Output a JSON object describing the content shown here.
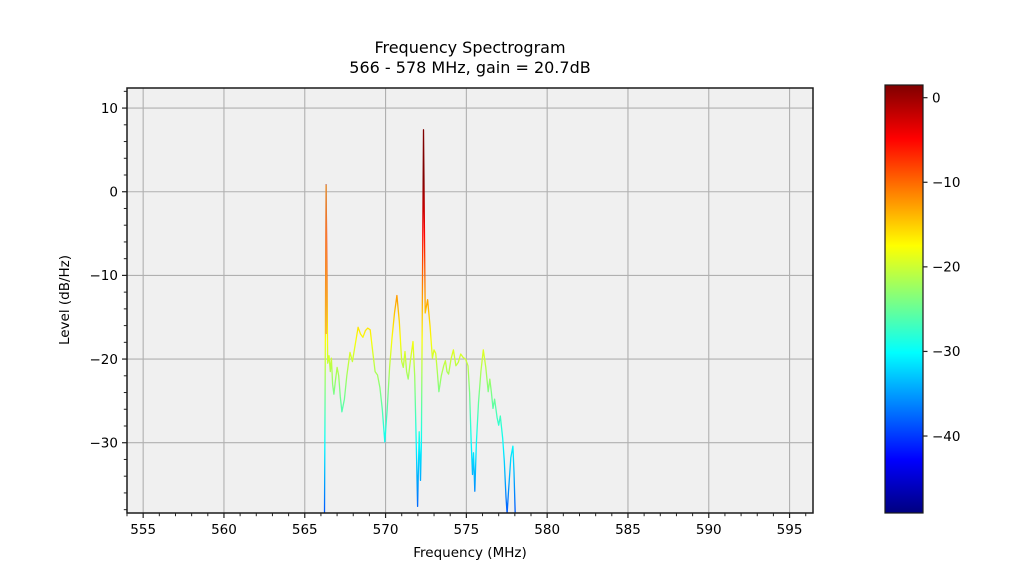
{
  "figure": {
    "background": "#ffffff"
  },
  "chart_data": {
    "type": "line",
    "title_lines": [
      "Frequency Spectrogram",
      "566 - 578 MHz, gain = 20.7dB"
    ],
    "xlabel": "Frequency (MHz)",
    "ylabel": "Level (dB/Hz)",
    "xlim": [
      554.0,
      596.45
    ],
    "ylim": [
      -38.4,
      12.4
    ],
    "grid": true,
    "plot_bg": "#f0f0f0",
    "grid_color": "#b0b0b0",
    "spine_color": "#1a1a1a",
    "tick_color": "#222222",
    "x_major_ticks": [
      {
        "v": 555,
        "label": "555"
      },
      {
        "v": 560,
        "label": "560"
      },
      {
        "v": 565,
        "label": "565"
      },
      {
        "v": 570,
        "label": "570"
      },
      {
        "v": 575,
        "label": "575"
      },
      {
        "v": 580,
        "label": "580"
      },
      {
        "v": 585,
        "label": "585"
      },
      {
        "v": 590,
        "label": "590"
      },
      {
        "v": 595,
        "label": "595"
      }
    ],
    "x_minor_step": 1,
    "y_major_ticks": [
      {
        "v": 10,
        "label": "10"
      },
      {
        "v": 0,
        "label": "0"
      },
      {
        "v": -10,
        "label": "−10"
      },
      {
        "v": -20,
        "label": "−20"
      },
      {
        "v": -30,
        "label": "−30"
      }
    ],
    "y_minor_step": 2,
    "colormap": "jet",
    "color_vmin": -49.1,
    "color_vmax": 1.5,
    "colorbar_ticks": [
      {
        "v": 0,
        "label": "0"
      },
      {
        "v": -10,
        "label": "−10"
      },
      {
        "v": -20,
        "label": "−20"
      },
      {
        "v": -30,
        "label": "−30"
      },
      {
        "v": -40,
        "label": "−40"
      }
    ],
    "series": [
      {
        "name": "spectrum",
        "points": [
          [
            566.22,
            -38.5
          ],
          [
            566.32,
            0.8
          ],
          [
            566.42,
            -20.5
          ],
          [
            566.5,
            -19.6
          ],
          [
            566.58,
            -21.5
          ],
          [
            566.65,
            -19.9
          ],
          [
            566.72,
            -23.0
          ],
          [
            566.8,
            -24.2
          ],
          [
            566.9,
            -22.5
          ],
          [
            567.0,
            -21.0
          ],
          [
            567.1,
            -22.0
          ],
          [
            567.2,
            -24.5
          ],
          [
            567.3,
            -26.3
          ],
          [
            567.45,
            -24.8
          ],
          [
            567.6,
            -22.0
          ],
          [
            567.8,
            -19.2
          ],
          [
            567.95,
            -20.3
          ],
          [
            568.1,
            -18.5
          ],
          [
            568.3,
            -16.2
          ],
          [
            568.45,
            -17.0
          ],
          [
            568.6,
            -17.4
          ],
          [
            568.75,
            -16.6
          ],
          [
            568.9,
            -16.3
          ],
          [
            569.05,
            -16.5
          ],
          [
            569.2,
            -19.0
          ],
          [
            569.35,
            -21.5
          ],
          [
            569.5,
            -21.9
          ],
          [
            569.65,
            -23.4
          ],
          [
            569.8,
            -26.0
          ],
          [
            569.95,
            -29.9
          ],
          [
            570.1,
            -26.0
          ],
          [
            570.25,
            -21.0
          ],
          [
            570.4,
            -17.5
          ],
          [
            570.55,
            -14.5
          ],
          [
            570.7,
            -12.4
          ],
          [
            570.85,
            -15.5
          ],
          [
            571.0,
            -20.3
          ],
          [
            571.1,
            -21.0
          ],
          [
            571.2,
            -19.1
          ],
          [
            571.3,
            -21.5
          ],
          [
            571.4,
            -22.4
          ],
          [
            571.55,
            -20.0
          ],
          [
            571.7,
            -17.9
          ],
          [
            571.8,
            -22.0
          ],
          [
            571.92,
            -32.0
          ],
          [
            571.98,
            -37.6
          ],
          [
            572.08,
            -28.7
          ],
          [
            572.16,
            -34.5
          ],
          [
            572.22,
            -30.0
          ],
          [
            572.35,
            7.4
          ],
          [
            572.45,
            -14.5
          ],
          [
            572.6,
            -12.9
          ],
          [
            572.75,
            -16.0
          ],
          [
            572.9,
            -19.9
          ],
          [
            573.0,
            -18.9
          ],
          [
            573.1,
            -19.3
          ],
          [
            573.2,
            -21.5
          ],
          [
            573.3,
            -23.9
          ],
          [
            573.45,
            -22.0
          ],
          [
            573.6,
            -20.8
          ],
          [
            573.7,
            -20.2
          ],
          [
            573.8,
            -21.5
          ],
          [
            573.9,
            -21.8
          ],
          [
            574.05,
            -20.0
          ],
          [
            574.2,
            -18.9
          ],
          [
            574.35,
            -20.8
          ],
          [
            574.5,
            -20.4
          ],
          [
            574.65,
            -19.4
          ],
          [
            574.8,
            -19.8
          ],
          [
            574.95,
            -20.0
          ],
          [
            575.1,
            -20.8
          ],
          [
            575.2,
            -24.0
          ],
          [
            575.3,
            -30.0
          ],
          [
            575.38,
            -33.8
          ],
          [
            575.44,
            -31.2
          ],
          [
            575.52,
            -35.8
          ],
          [
            575.62,
            -30.0
          ],
          [
            575.75,
            -25.2
          ],
          [
            575.9,
            -21.5
          ],
          [
            576.05,
            -18.9
          ],
          [
            576.2,
            -21.0
          ],
          [
            576.35,
            -23.9
          ],
          [
            576.45,
            -22.4
          ],
          [
            576.55,
            -24.0
          ],
          [
            576.65,
            -25.9
          ],
          [
            576.75,
            -24.8
          ],
          [
            576.9,
            -27.0
          ],
          [
            577.0,
            -27.9
          ],
          [
            577.1,
            -26.8
          ],
          [
            577.25,
            -29.5
          ],
          [
            577.35,
            -32.2
          ],
          [
            577.45,
            -36.5
          ],
          [
            577.52,
            -38.5
          ],
          [
            577.6,
            -36.0
          ],
          [
            577.75,
            -31.8
          ],
          [
            577.88,
            -30.4
          ],
          [
            577.95,
            -33.5
          ],
          [
            578.02,
            -38.5
          ]
        ]
      }
    ],
    "spike_overlay": {
      "x": 566.32,
      "y_top": 0.8,
      "y_bottom": -17.0,
      "color": "#f2a33c"
    }
  }
}
